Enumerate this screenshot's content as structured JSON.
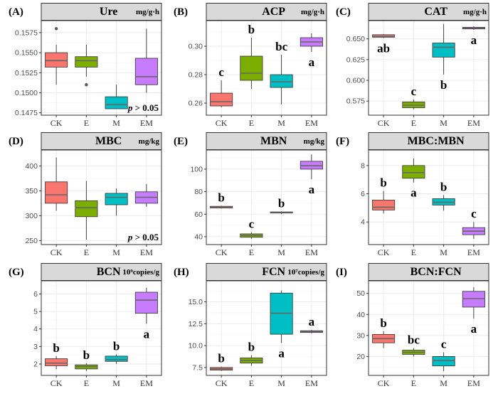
{
  "colors": {
    "CK": "#F8766D",
    "E": "#7CAE00",
    "M": "#00BFC4",
    "EM": "#C77CFF"
  },
  "chart_data": [
    {
      "id": "A",
      "type": "box",
      "tag": "(A)",
      "title": "Ure",
      "unit": "mg/g·h",
      "categories": [
        "CK",
        "E",
        "M",
        "EM"
      ],
      "ylim": [
        0.1472,
        0.159
      ],
      "yticks": [
        0.1475,
        0.15,
        0.1525,
        0.155,
        0.1575
      ],
      "ytick_labels": [
        "0.1475",
        "0.1500",
        "0.1525",
        "0.1550",
        "0.1575"
      ],
      "boxes": [
        {
          "min": 0.151,
          "q1": 0.1532,
          "median": 0.154,
          "q3": 0.155,
          "max": 0.156,
          "outliers": [
            0.158
          ],
          "label": ""
        },
        {
          "min": 0.152,
          "q1": 0.1532,
          "median": 0.154,
          "q3": 0.1545,
          "max": 0.156,
          "outliers": [
            0.151
          ],
          "label": ""
        },
        {
          "min": 0.148,
          "q1": 0.148,
          "median": 0.1485,
          "q3": 0.1495,
          "max": 0.151,
          "outliers": [],
          "label": ""
        },
        {
          "min": 0.15,
          "q1": 0.151,
          "median": 0.152,
          "q3": 0.1543,
          "max": 0.158,
          "outliers": [],
          "label": ""
        }
      ],
      "note": "p > 0.05",
      "note_pos": "bottom-right"
    },
    {
      "id": "B",
      "type": "box",
      "tag": "(B)",
      "title": "ACP",
      "unit": "mg/g·h",
      "categories": [
        "CK",
        "E",
        "M",
        "EM"
      ],
      "ylim": [
        0.2515,
        0.318
      ],
      "yticks": [
        0.26,
        0.28,
        0.3
      ],
      "ytick_labels": [
        "0.26",
        "0.28",
        "0.30"
      ],
      "boxes": [
        {
          "min": 0.257,
          "q1": 0.258,
          "median": 0.261,
          "q3": 0.267,
          "max": 0.276,
          "outliers": [],
          "label": "c"
        },
        {
          "min": 0.27,
          "q1": 0.276,
          "median": 0.281,
          "q3": 0.293,
          "max": 0.306,
          "outliers": [],
          "label": "b"
        },
        {
          "min": 0.259,
          "q1": 0.271,
          "median": 0.275,
          "q3": 0.28,
          "max": 0.294,
          "outliers": [],
          "label": "bc"
        },
        {
          "min": 0.296,
          "q1": 0.3,
          "median": 0.303,
          "q3": 0.306,
          "max": 0.309,
          "outliers": [],
          "label": "a"
        }
      ]
    },
    {
      "id": "C",
      "type": "box",
      "tag": "(C)",
      "title": "CAT",
      "unit": "mg/g·h",
      "categories": [
        "CK",
        "E",
        "M",
        "EM"
      ],
      "ylim": [
        0.558,
        0.672
      ],
      "yticks": [
        0.575,
        0.6,
        0.625,
        0.65
      ],
      "ytick_labels": [
        "0.575",
        "0.600",
        "0.625",
        "0.650"
      ],
      "boxes": [
        {
          "min": 0.651,
          "q1": 0.652,
          "median": 0.653,
          "q3": 0.655,
          "max": 0.656,
          "outliers": [],
          "label": "ab"
        },
        {
          "min": 0.565,
          "q1": 0.567,
          "median": 0.57,
          "q3": 0.574,
          "max": 0.577,
          "outliers": [],
          "label": "c"
        },
        {
          "min": 0.607,
          "q1": 0.628,
          "median": 0.64,
          "q3": 0.645,
          "max": 0.668,
          "outliers": [],
          "label": "b"
        },
        {
          "min": 0.661,
          "q1": 0.662,
          "median": 0.663,
          "q3": 0.664,
          "max": 0.665,
          "outliers": [],
          "label": "a"
        }
      ]
    },
    {
      "id": "D",
      "type": "box",
      "tag": "(D)",
      "title": "MBC",
      "unit": "mg/kg",
      "categories": [
        "CK",
        "E",
        "M",
        "EM"
      ],
      "ylim": [
        242,
        432
      ],
      "yticks": [
        250,
        300,
        350,
        400
      ],
      "ytick_labels": [
        "250",
        "300",
        "350",
        "400"
      ],
      "boxes": [
        {
          "min": 310,
          "q1": 325,
          "median": 342,
          "q3": 368,
          "max": 417,
          "outliers": [],
          "label": ""
        },
        {
          "min": 252,
          "q1": 298,
          "median": 316,
          "q3": 330,
          "max": 370,
          "outliers": [],
          "label": ""
        },
        {
          "min": 300,
          "q1": 322,
          "median": 337,
          "q3": 345,
          "max": 355,
          "outliers": [],
          "label": ""
        },
        {
          "min": 318,
          "q1": 325,
          "median": 337,
          "q3": 348,
          "max": 364,
          "outliers": [],
          "label": ""
        }
      ],
      "note": "p > 0.05",
      "note_pos": "bottom-right"
    },
    {
      "id": "E",
      "type": "box",
      "tag": "(E)",
      "title": "MBN",
      "unit": "mg/kg",
      "categories": [
        "CK",
        "E",
        "M",
        "EM"
      ],
      "ylim": [
        33,
        117
      ],
      "yticks": [
        40,
        60,
        80,
        100
      ],
      "ytick_labels": [
        "40",
        "60",
        "80",
        "100"
      ],
      "boxes": [
        {
          "min": 65,
          "q1": 65.5,
          "median": 66,
          "q3": 67,
          "max": 67.5,
          "outliers": [],
          "label": "b"
        },
        {
          "min": 38,
          "q1": 39.5,
          "median": 41,
          "q3": 42.5,
          "max": 44,
          "outliers": [],
          "label": "c"
        },
        {
          "min": 60,
          "q1": 61,
          "median": 61.5,
          "q3": 62,
          "max": 62.5,
          "outliers": [],
          "label": "b"
        },
        {
          "min": 91,
          "q1": 100,
          "median": 103,
          "q3": 107,
          "max": 113,
          "outliers": [],
          "label": "a"
        }
      ]
    },
    {
      "id": "F",
      "type": "box",
      "tag": "(F)",
      "title": "MBC:MBN",
      "unit": "",
      "categories": [
        "CK",
        "E",
        "M",
        "EM"
      ],
      "ylim": [
        2.4,
        9.1
      ],
      "yticks": [
        4,
        6,
        8
      ],
      "ytick_labels": [
        "4",
        "6",
        "8"
      ],
      "boxes": [
        {
          "min": 4.6,
          "q1": 4.85,
          "median": 5.05,
          "q3": 5.55,
          "max": 6.2,
          "outliers": [],
          "label": "b"
        },
        {
          "min": 6.8,
          "q1": 7.1,
          "median": 7.5,
          "q3": 8.0,
          "max": 8.5,
          "outliers": [],
          "label": "a"
        },
        {
          "min": 4.8,
          "q1": 5.2,
          "median": 5.4,
          "q3": 5.65,
          "max": 5.9,
          "outliers": [],
          "label": "b"
        },
        {
          "min": 2.8,
          "q1": 3.1,
          "median": 3.35,
          "q3": 3.6,
          "max": 4.0,
          "outliers": [],
          "label": "c"
        }
      ]
    },
    {
      "id": "G",
      "type": "box",
      "tag": "(G)",
      "title": "BCN",
      "unit": "10⁹copies/g",
      "categories": [
        "CK",
        "E",
        "M",
        "EM"
      ],
      "ylim": [
        1.35,
        6.75
      ],
      "yticks": [
        2,
        3,
        4,
        5,
        6
      ],
      "ytick_labels": [
        "2",
        "3",
        "4",
        "5",
        "6"
      ],
      "boxes": [
        {
          "min": 1.7,
          "q1": 1.9,
          "median": 2.05,
          "q3": 2.3,
          "max": 2.45,
          "outliers": [],
          "label": "b"
        },
        {
          "min": 1.6,
          "q1": 1.72,
          "median": 1.85,
          "q3": 1.95,
          "max": 2.05,
          "outliers": [],
          "label": "b"
        },
        {
          "min": 2.0,
          "q1": 2.15,
          "median": 2.25,
          "q3": 2.45,
          "max": 2.55,
          "outliers": [],
          "label": "b"
        },
        {
          "min": 4.3,
          "q1": 4.9,
          "median": 5.65,
          "q3": 6.1,
          "max": 6.35,
          "outliers": [],
          "label": "a"
        }
      ]
    },
    {
      "id": "H",
      "type": "box",
      "tag": "(H)",
      "title": "FCN",
      "unit": "10⁷copies/g",
      "categories": [
        "CK",
        "E",
        "M",
        "EM"
      ],
      "ylim": [
        6.6,
        17.4
      ],
      "yticks": [
        7.5,
        10.0,
        12.5,
        15.0
      ],
      "ytick_labels": [
        "7.5",
        "10.0",
        "12.5",
        "15.0"
      ],
      "boxes": [
        {
          "min": 7.1,
          "q1": 7.2,
          "median": 7.35,
          "q3": 7.5,
          "max": 7.6,
          "outliers": [],
          "label": "b"
        },
        {
          "min": 7.7,
          "q1": 8.0,
          "median": 8.3,
          "q3": 8.6,
          "max": 8.9,
          "outliers": [],
          "label": "b"
        },
        {
          "min": 10.3,
          "q1": 11.3,
          "median": 13.7,
          "q3": 16.0,
          "max": 16.3,
          "outliers": [],
          "label": "a"
        },
        {
          "min": 11.4,
          "q1": 11.5,
          "median": 11.6,
          "q3": 11.7,
          "max": 11.8,
          "outliers": [],
          "label": "a"
        }
      ]
    },
    {
      "id": "I",
      "type": "box",
      "tag": "(I)",
      "title": "BCN:FCN",
      "unit": "",
      "categories": [
        "CK",
        "E",
        "M",
        "EM"
      ],
      "ylim": [
        11,
        56
      ],
      "yticks": [
        20,
        30,
        40,
        50
      ],
      "ytick_labels": [
        "20",
        "30",
        "40",
        "50"
      ],
      "boxes": [
        {
          "min": 24,
          "q1": 26.5,
          "median": 28.5,
          "q3": 30.5,
          "max": 32,
          "outliers": [],
          "label": "b"
        },
        {
          "min": 20,
          "q1": 21,
          "median": 22,
          "q3": 23,
          "max": 24,
          "outliers": [],
          "label": "bc"
        },
        {
          "min": 13,
          "q1": 15.5,
          "median": 18,
          "q3": 20,
          "max": 22,
          "outliers": [],
          "label": "c"
        },
        {
          "min": 38,
          "q1": 43.5,
          "median": 47.5,
          "q3": 51,
          "max": 53,
          "outliers": [],
          "label": "a"
        }
      ]
    }
  ]
}
